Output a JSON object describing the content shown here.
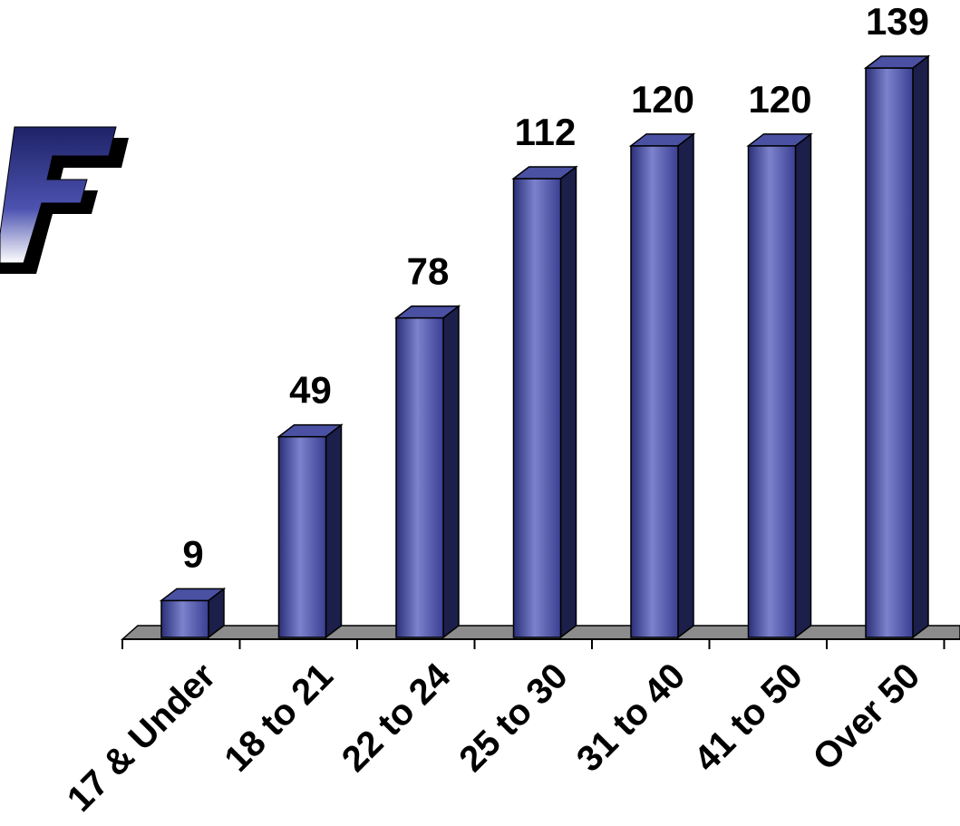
{
  "chart_data": {
    "type": "bar",
    "categories": [
      "17 & Under",
      "18 to 21",
      "22 to 24",
      "25 to 30",
      "31 to 40",
      "41 to 50",
      "Over 50"
    ],
    "values": [
      9,
      49,
      78,
      112,
      120,
      120,
      139
    ],
    "ylim": [
      0,
      139
    ],
    "grid": false,
    "legend": "none",
    "style": "3d-cylinder-columns"
  },
  "colors": {
    "bar_front": "#5a62b5",
    "bar_highlight": "#8a8fd6",
    "bar_side": "#1c1f4a",
    "bar_top": "#4a51a3",
    "floor": "#8c8c8c",
    "logo_fill": "#3b3f9a",
    "logo_shadow": "#000000"
  },
  "logo": {
    "letter": "F",
    "icon": "f-logo-icon"
  }
}
